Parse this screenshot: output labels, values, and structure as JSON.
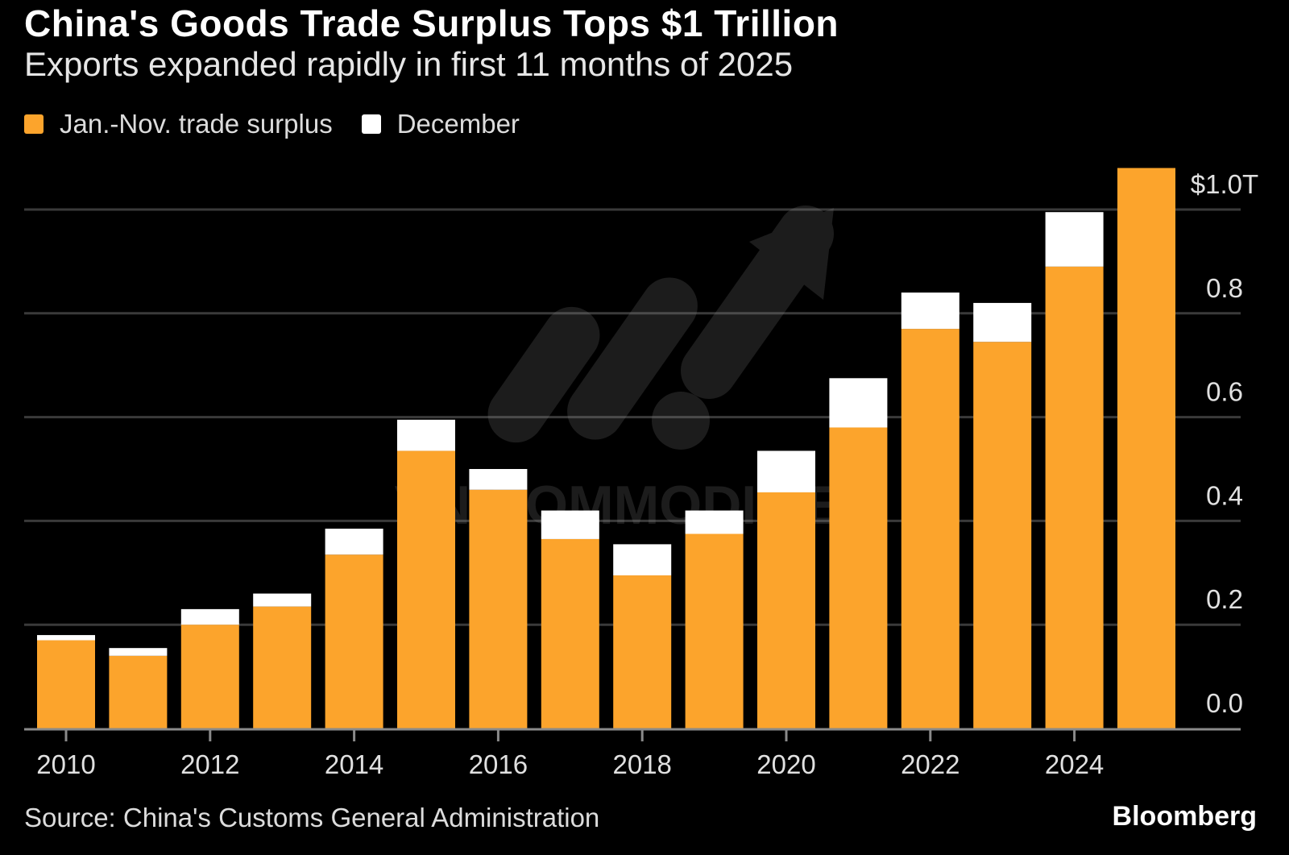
{
  "colors": {
    "jan_nov": "#fca42c",
    "december": "#ffffff",
    "grid": "#3a3a3a",
    "background": "#000000"
  },
  "legend": {
    "items": [
      {
        "label": "Jan.-Nov. trade surplus",
        "color": "#fca42c"
      },
      {
        "label": "December",
        "color": "#ffffff"
      }
    ]
  },
  "footer": {
    "source": "Source: China's Customs General Administration",
    "brand": "Bloomberg"
  },
  "chart_data": {
    "type": "bar",
    "stacked": true,
    "title": "China's Goods Trade Surplus Tops $1 Trillion",
    "subtitle": "Exports expanded rapidly in first 11 months of 2025",
    "categories": [
      "2010",
      "2011",
      "2012",
      "2013",
      "2014",
      "2015",
      "2016",
      "2017",
      "2018",
      "2019",
      "2020",
      "2021",
      "2022",
      "2023",
      "2024",
      "2025"
    ],
    "x_tick_labels": [
      "2010",
      "2012",
      "2014",
      "2016",
      "2018",
      "2020",
      "2022",
      "2024"
    ],
    "series": [
      {
        "name": "Jan.-Nov. trade surplus",
        "values": [
          0.17,
          0.14,
          0.2,
          0.235,
          0.335,
          0.535,
          0.46,
          0.365,
          0.295,
          0.375,
          0.455,
          0.58,
          0.77,
          0.745,
          0.89,
          1.08
        ]
      },
      {
        "name": "December",
        "values": [
          0.01,
          0.015,
          0.03,
          0.025,
          0.05,
          0.06,
          0.04,
          0.055,
          0.06,
          0.045,
          0.08,
          0.095,
          0.07,
          0.075,
          0.105,
          0
        ]
      }
    ],
    "ylim": [
      0,
      1.0
    ],
    "y_ticks": [
      {
        "value": 0.0,
        "label": "0.0"
      },
      {
        "value": 0.2,
        "label": "0.2"
      },
      {
        "value": 0.4,
        "label": "0.4"
      },
      {
        "value": 0.6,
        "label": "0.6"
      },
      {
        "value": 0.8,
        "label": "0.8"
      },
      {
        "value": 1.0,
        "label": "$1.0T"
      }
    ],
    "grid": true,
    "y_axis_side": "right",
    "legend_position": "top-left",
    "xlabel": "",
    "ylabel": ""
  },
  "watermark": {
    "text": "VN COMMODITIES"
  }
}
